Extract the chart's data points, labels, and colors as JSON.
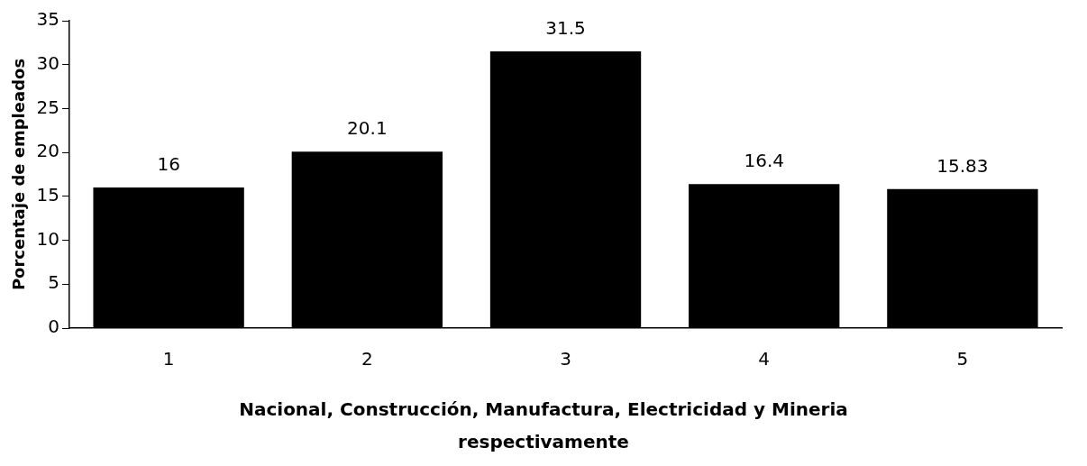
{
  "chart_data": {
    "type": "bar",
    "categories": [
      "1",
      "2",
      "3",
      "4",
      "5"
    ],
    "values": [
      16,
      20.1,
      31.5,
      16.4,
      15.83
    ],
    "color": "#000000",
    "ylim": [
      0,
      35
    ],
    "yticks": [
      0,
      5,
      10,
      15,
      20,
      25,
      30,
      35
    ],
    "ylabel": "Porcentaje de empleados",
    "xlabel": "Nacional, Construcción, Manufactura, Electricidad y Mineria respectivamente",
    "data_labels": true,
    "grid": false,
    "legend": false
  }
}
